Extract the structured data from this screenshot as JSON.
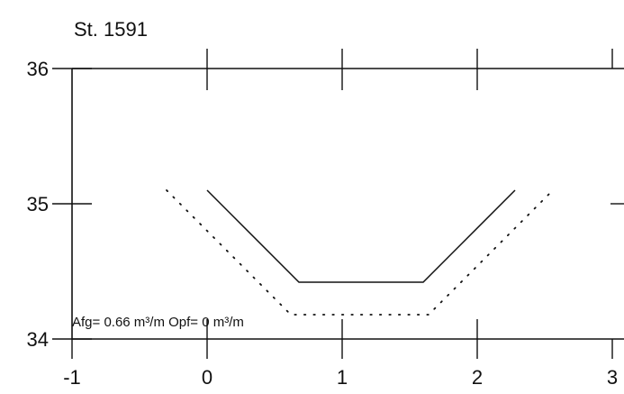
{
  "chart_data": {
    "type": "line",
    "title": "St. 1591",
    "xlabel": "",
    "ylabel": "",
    "xlim": [
      -1,
      3
    ],
    "ylim": [
      34,
      36
    ],
    "x_ticks": [
      -1,
      0,
      1,
      2,
      3
    ],
    "y_ticks": [
      34,
      35,
      36
    ],
    "x_tick_labels": [
      "-1",
      "0",
      "1",
      "2",
      "3"
    ],
    "y_tick_labels": [
      "34",
      "35",
      "36"
    ],
    "grid": false,
    "series": [
      {
        "style": "solid",
        "color": "#111111",
        "points": [
          [
            0.0,
            35.1
          ],
          [
            0.68,
            34.42
          ],
          [
            1.6,
            34.42
          ],
          [
            2.28,
            35.1
          ]
        ]
      },
      {
        "style": "dotted",
        "color": "#111111",
        "points": [
          [
            -0.3,
            35.1
          ],
          [
            0.62,
            34.18
          ],
          [
            1.64,
            34.18
          ],
          [
            2.56,
            35.1
          ]
        ]
      }
    ],
    "annotation": "Afg= 0.66 m³/m  Opf= 0 m³/m"
  }
}
